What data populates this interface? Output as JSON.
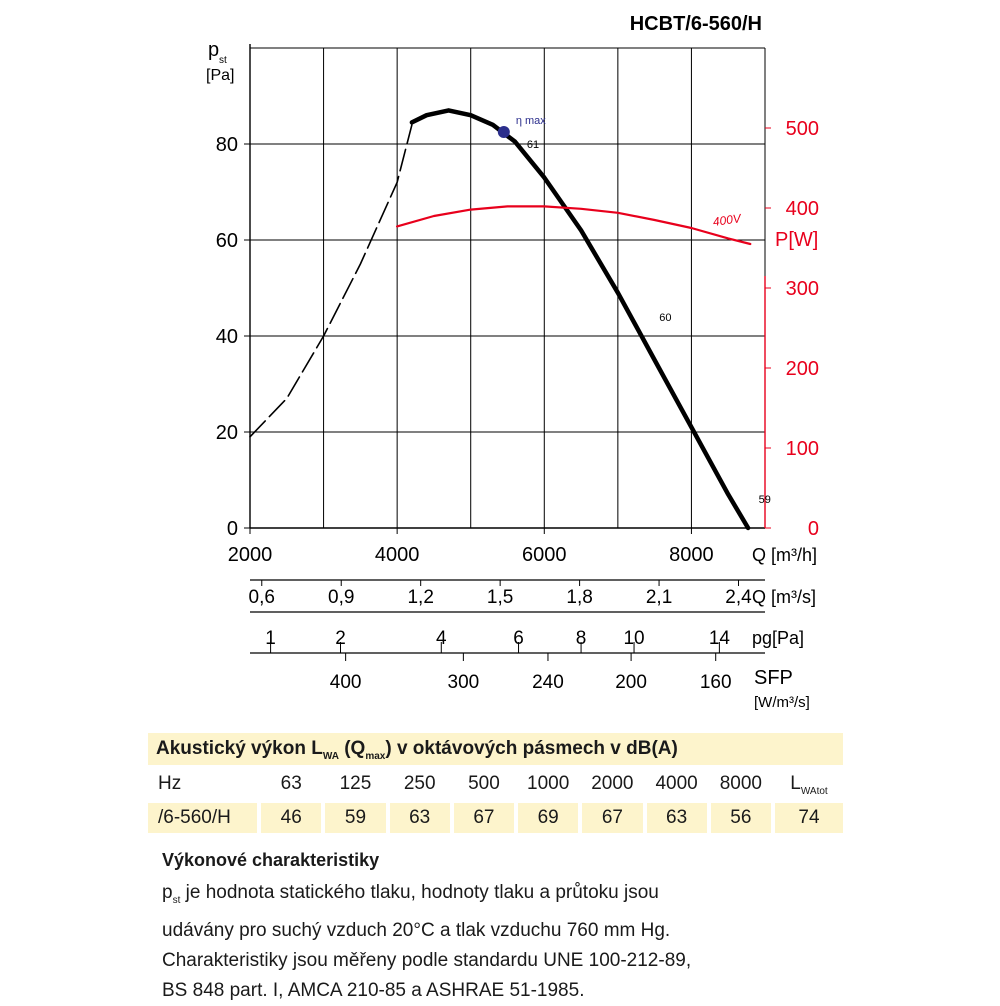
{
  "model_title": "HCBT/6-560/H",
  "chart_data": {
    "type": "line",
    "title": "HCBT/6-560/H",
    "y_left": {
      "label_main": "p",
      "label_sub": "st",
      "unit": "[Pa]",
      "ylim": [
        0,
        100
      ],
      "ticks": [
        0,
        20,
        40,
        60,
        80
      ]
    },
    "y_right": {
      "label": "P[W]",
      "ylim": [
        0,
        600
      ],
      "ticks": [
        0,
        100,
        200,
        300,
        400,
        500
      ],
      "color": "#e8001c"
    },
    "x": {
      "label": "Q [m³/h]",
      "xlim": [
        2000,
        9000
      ],
      "ticks": [
        "2000",
        "4000",
        "6000",
        "8000"
      ]
    },
    "grid": true,
    "series": [
      {
        "name": "",
        "style": "dashed",
        "color": "#000000",
        "points": [
          [
            2000,
            19
          ],
          [
            2500,
            27
          ],
          [
            3000,
            40
          ],
          [
            3500,
            55
          ],
          [
            4000,
            72
          ],
          [
            4200,
            84
          ]
        ]
      },
      {
        "name": "",
        "style": "solid",
        "color": "#000000",
        "points": [
          [
            4200,
            84.5
          ],
          [
            4400,
            86
          ],
          [
            4700,
            87
          ],
          [
            5000,
            86
          ],
          [
            5300,
            84
          ],
          [
            5600,
            80.5
          ],
          [
            6000,
            73
          ],
          [
            6500,
            62
          ],
          [
            7000,
            49
          ],
          [
            7500,
            35
          ],
          [
            8000,
            21
          ],
          [
            8500,
            7
          ],
          [
            8770,
            0
          ]
        ]
      },
      {
        "name": "400V",
        "style": "solid",
        "color": "#e8001c",
        "axis": "right",
        "points": [
          [
            4000,
            377
          ],
          [
            4500,
            390
          ],
          [
            5000,
            398
          ],
          [
            5500,
            402
          ],
          [
            6000,
            402
          ],
          [
            6500,
            399
          ],
          [
            7000,
            394
          ],
          [
            7500,
            385
          ],
          [
            8000,
            375
          ],
          [
            8500,
            362
          ],
          [
            8800,
            355
          ]
        ]
      }
    ],
    "annotations": [
      {
        "text": "η max",
        "x": 5450,
        "y": 82.5,
        "marker": true,
        "color": "#2b2e8c"
      },
      {
        "text": "61",
        "x": 5600,
        "y": 80
      },
      {
        "text": "60",
        "x": 7400,
        "y": 44
      },
      {
        "text": "59",
        "x": 8750,
        "y": 6
      },
      {
        "text": "400V",
        "x": 8300,
        "y": 365,
        "axis": "right",
        "color": "#e8001c"
      }
    ],
    "secondary_scales": [
      {
        "label": "Q [m³/s]",
        "ticks": [
          [
            2160,
            "0,6"
          ],
          [
            3240,
            "0,9"
          ],
          [
            4320,
            "1,2"
          ],
          [
            5400,
            "1,5"
          ],
          [
            6480,
            "1,8"
          ],
          [
            7560,
            "2,1"
          ],
          [
            8640,
            "2,4"
          ]
        ]
      },
      {
        "label": "pg[Pa]",
        "ticks": [
          [
            2280,
            "1"
          ],
          [
            3230,
            "2"
          ],
          [
            4600,
            "4"
          ],
          [
            5650,
            "6"
          ],
          [
            6500,
            "8"
          ],
          [
            7220,
            "10"
          ],
          [
            8380,
            "14"
          ]
        ]
      },
      {
        "label": "SFP",
        "unit": "[W/m³/s]",
        "ticks": [
          [
            3300,
            "400"
          ],
          [
            4900,
            "300"
          ],
          [
            6050,
            "240"
          ],
          [
            7180,
            "200"
          ],
          [
            8330,
            "160"
          ]
        ]
      }
    ]
  },
  "acoustic": {
    "header_main": "Akustický výkon L",
    "header_sub1": "WA",
    "header_mid": " (Q",
    "header_sub2": "max",
    "header_end": ") v oktávových pásmech v dB(A)",
    "hz_label": "Hz",
    "bands": [
      "63",
      "125",
      "250",
      "500",
      "1000",
      "2000",
      "4000",
      "8000"
    ],
    "total_label_main": "L",
    "total_label_sub": "WAtot",
    "model": "/6-560/H",
    "values": [
      "46",
      "59",
      "63",
      "67",
      "69",
      "67",
      "63",
      "56"
    ],
    "total": "74"
  },
  "notes": {
    "title": "Výkonové charakteristiky",
    "line1_sym": "p",
    "line1_sub": "st",
    "line1_rest": " je hodnota statického tlaku, hodnoty tlaku a průtoku jsou",
    "line2": "udávány pro suchý vzduch 20°C a tlak vzduchu 760 mm Hg.",
    "line3": "Charakteristiky jsou měřeny podle standardu UNE 100-212-89,",
    "line4": "BS 848 part. I, AMCA 210-85 a ASHRAE 51-1985."
  }
}
